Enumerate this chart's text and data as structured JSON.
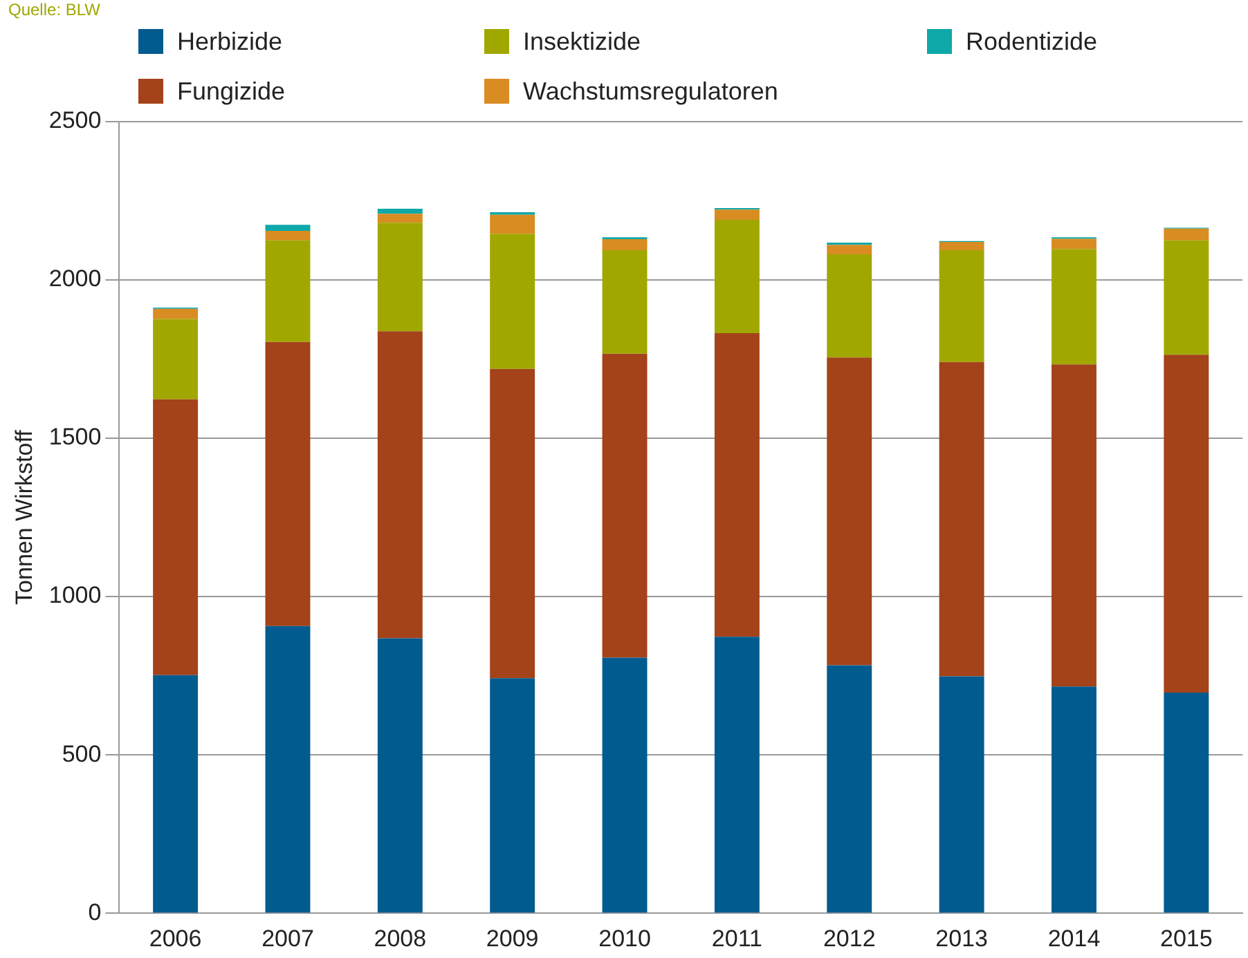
{
  "chart_data": {
    "type": "bar",
    "stacked": true,
    "ylabel": "Tonnen Wirkstoff",
    "annotations": [
      "Quelle: BLW"
    ],
    "categories": [
      "2006",
      "2007",
      "2008",
      "2009",
      "2010",
      "2011",
      "2012",
      "2013",
      "2014",
      "2015"
    ],
    "series": [
      {
        "name": "Herbizide",
        "color": "#025b8f",
        "values": [
          752,
          907,
          868,
          742,
          807,
          873,
          783,
          748,
          716,
          697
        ]
      },
      {
        "name": "Fungizide",
        "color": "#a44219",
        "values": [
          871,
          897,
          970,
          977,
          960,
          959,
          972,
          993,
          1017,
          1067
        ]
      },
      {
        "name": "Insektizide",
        "color": "#a0a800",
        "values": [
          254,
          321,
          343,
          427,
          327,
          358,
          326,
          353,
          365,
          361
        ]
      },
      {
        "name": "Wachstumsregulatoren",
        "color": "#d88c22",
        "values": [
          32,
          30,
          28,
          60,
          35,
          32,
          30,
          26,
          32,
          37
        ]
      },
      {
        "name": "Rodentizide",
        "color": "#0ea8a8",
        "values": [
          4,
          19,
          16,
          8,
          6,
          5,
          7,
          3,
          5,
          3
        ]
      }
    ],
    "ylim": [
      0,
      2500
    ],
    "yticks": [
      0,
      500,
      1000,
      1500,
      2000,
      2500
    ],
    "grid": "y",
    "legend": "top"
  }
}
